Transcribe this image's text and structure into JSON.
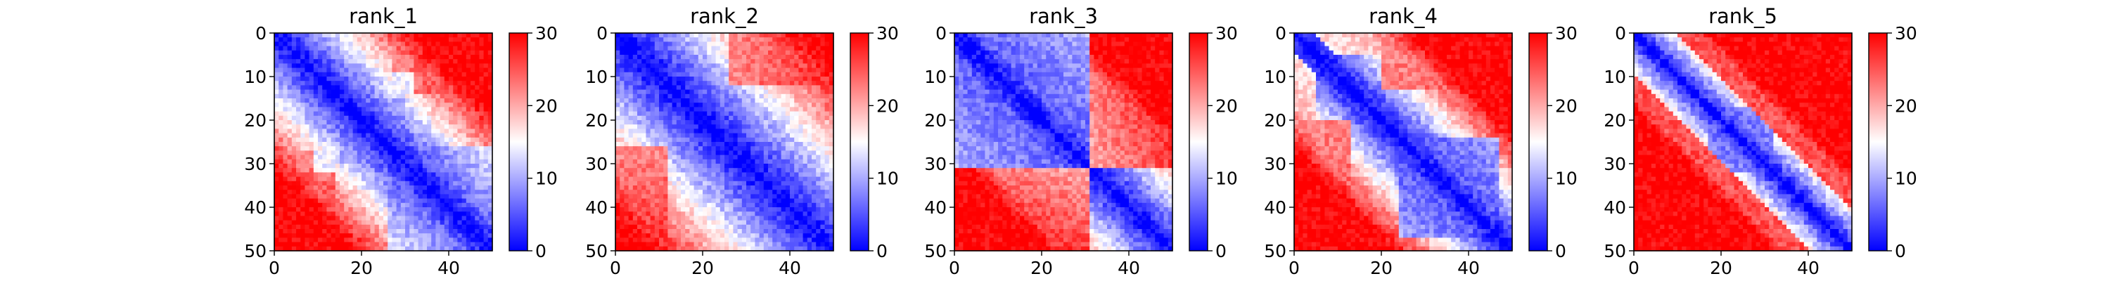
{
  "chart_data": [
    {
      "type": "heatmap",
      "title": "rank_1",
      "xlabel": "",
      "ylabel": "",
      "xlim": [
        0,
        50
      ],
      "ylim": [
        50,
        0
      ],
      "x_ticks": [
        "0",
        "20",
        "40"
      ],
      "y_ticks": [
        "0",
        "10",
        "20",
        "30",
        "40",
        "50"
      ],
      "colorbar": {
        "range": [
          0,
          30
        ],
        "ticks": [
          "0",
          "10",
          "20",
          "30"
        ],
        "colormap": "bwr"
      },
      "matrix_size": 50,
      "matrix_summary": "diagonal near 0; blue 7-12 block for residues 15-28 and a lower-right blue region 27-50; red 24-30 upper right; faint lower left"
    },
    {
      "type": "heatmap",
      "title": "rank_2",
      "xlabel": "",
      "ylabel": "",
      "xlim": [
        0,
        50
      ],
      "ylim": [
        50,
        0
      ],
      "x_ticks": [
        "0",
        "20",
        "40"
      ],
      "y_ticks": [
        "0",
        "10",
        "20",
        "30",
        "40",
        "50"
      ],
      "colorbar": {
        "range": [
          0,
          30
        ],
        "ticks": [
          "0",
          "10",
          "20",
          "30"
        ],
        "colormap": "bwr"
      },
      "matrix_size": 50,
      "matrix_summary": "diagonal near 0; broad blue band; red upper right and lower-left corner"
    },
    {
      "type": "heatmap",
      "title": "rank_3",
      "xlabel": "",
      "ylabel": "",
      "xlim": [
        0,
        50
      ],
      "ylim": [
        50,
        0
      ],
      "x_ticks": [
        "0",
        "20",
        "40"
      ],
      "y_ticks": [
        "0",
        "10",
        "20",
        "30",
        "40",
        "50"
      ],
      "colorbar": {
        "range": [
          0,
          30
        ],
        "ticks": [
          "0",
          "10",
          "20",
          "30"
        ],
        "colormap": "bwr"
      },
      "matrix_size": 50,
      "matrix_summary": "diagonal near 0; blue block for residues 0-30; strong red for pairs between block 0-30 and residues 30-50"
    },
    {
      "type": "heatmap",
      "title": "rank_4",
      "xlabel": "",
      "ylabel": "",
      "xlim": [
        0,
        50
      ],
      "ylim": [
        50,
        0
      ],
      "x_ticks": [
        "0",
        "20",
        "40"
      ],
      "y_ticks": [
        "0",
        "10",
        "20",
        "30",
        "40",
        "50"
      ],
      "colorbar": {
        "range": [
          0,
          30
        ],
        "ticks": [
          "0",
          "10",
          "20",
          "30"
        ],
        "colormap": "bwr"
      },
      "matrix_size": 50,
      "matrix_summary": "diagonal near 0; blue region for residues 25-45; red upper right and left"
    },
    {
      "type": "heatmap",
      "title": "rank_5",
      "xlabel": "",
      "ylabel": "",
      "xlim": [
        0,
        50
      ],
      "ylim": [
        50,
        0
      ],
      "x_ticks": [
        "0",
        "20",
        "40"
      ],
      "y_ticks": [
        "0",
        "10",
        "20",
        "30",
        "40",
        "50"
      ],
      "colorbar": {
        "range": [
          0,
          30
        ],
        "ticks": [
          "0",
          "10",
          "20",
          "30"
        ],
        "colormap": "bwr"
      },
      "matrix_size": 50,
      "matrix_summary": "diagonal near 0; narrow blue band widening near residues 17-30; red everywhere else"
    }
  ]
}
